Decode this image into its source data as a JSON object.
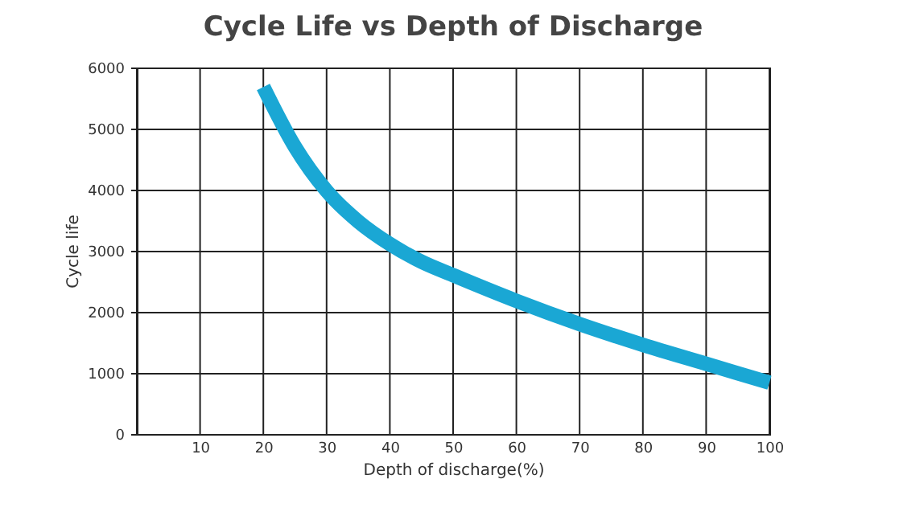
{
  "chart_data": {
    "type": "line",
    "title": "Cycle Life vs Depth of Discharge",
    "xlabel": "Depth of discharge(%)",
    "ylabel": "Cycle life",
    "x": [
      20,
      25,
      30,
      35,
      40,
      45,
      50,
      60,
      70,
      80,
      90,
      100
    ],
    "series": [
      {
        "color": "#1aa7d4",
        "values": [
          5680,
          4700,
          3980,
          3480,
          3110,
          2820,
          2600,
          2180,
          1800,
          1460,
          1150,
          840
        ]
      }
    ],
    "xlim": [
      0,
      100
    ],
    "xticks": [
      10,
      20,
      30,
      40,
      50,
      60,
      70,
      80,
      90,
      100
    ],
    "ylim": [
      0,
      6000
    ],
    "yticks": [
      0,
      1000,
      2000,
      3000,
      4000,
      5000,
      6000
    ],
    "grid": true,
    "marker": "none",
    "line_style": "solid"
  }
}
